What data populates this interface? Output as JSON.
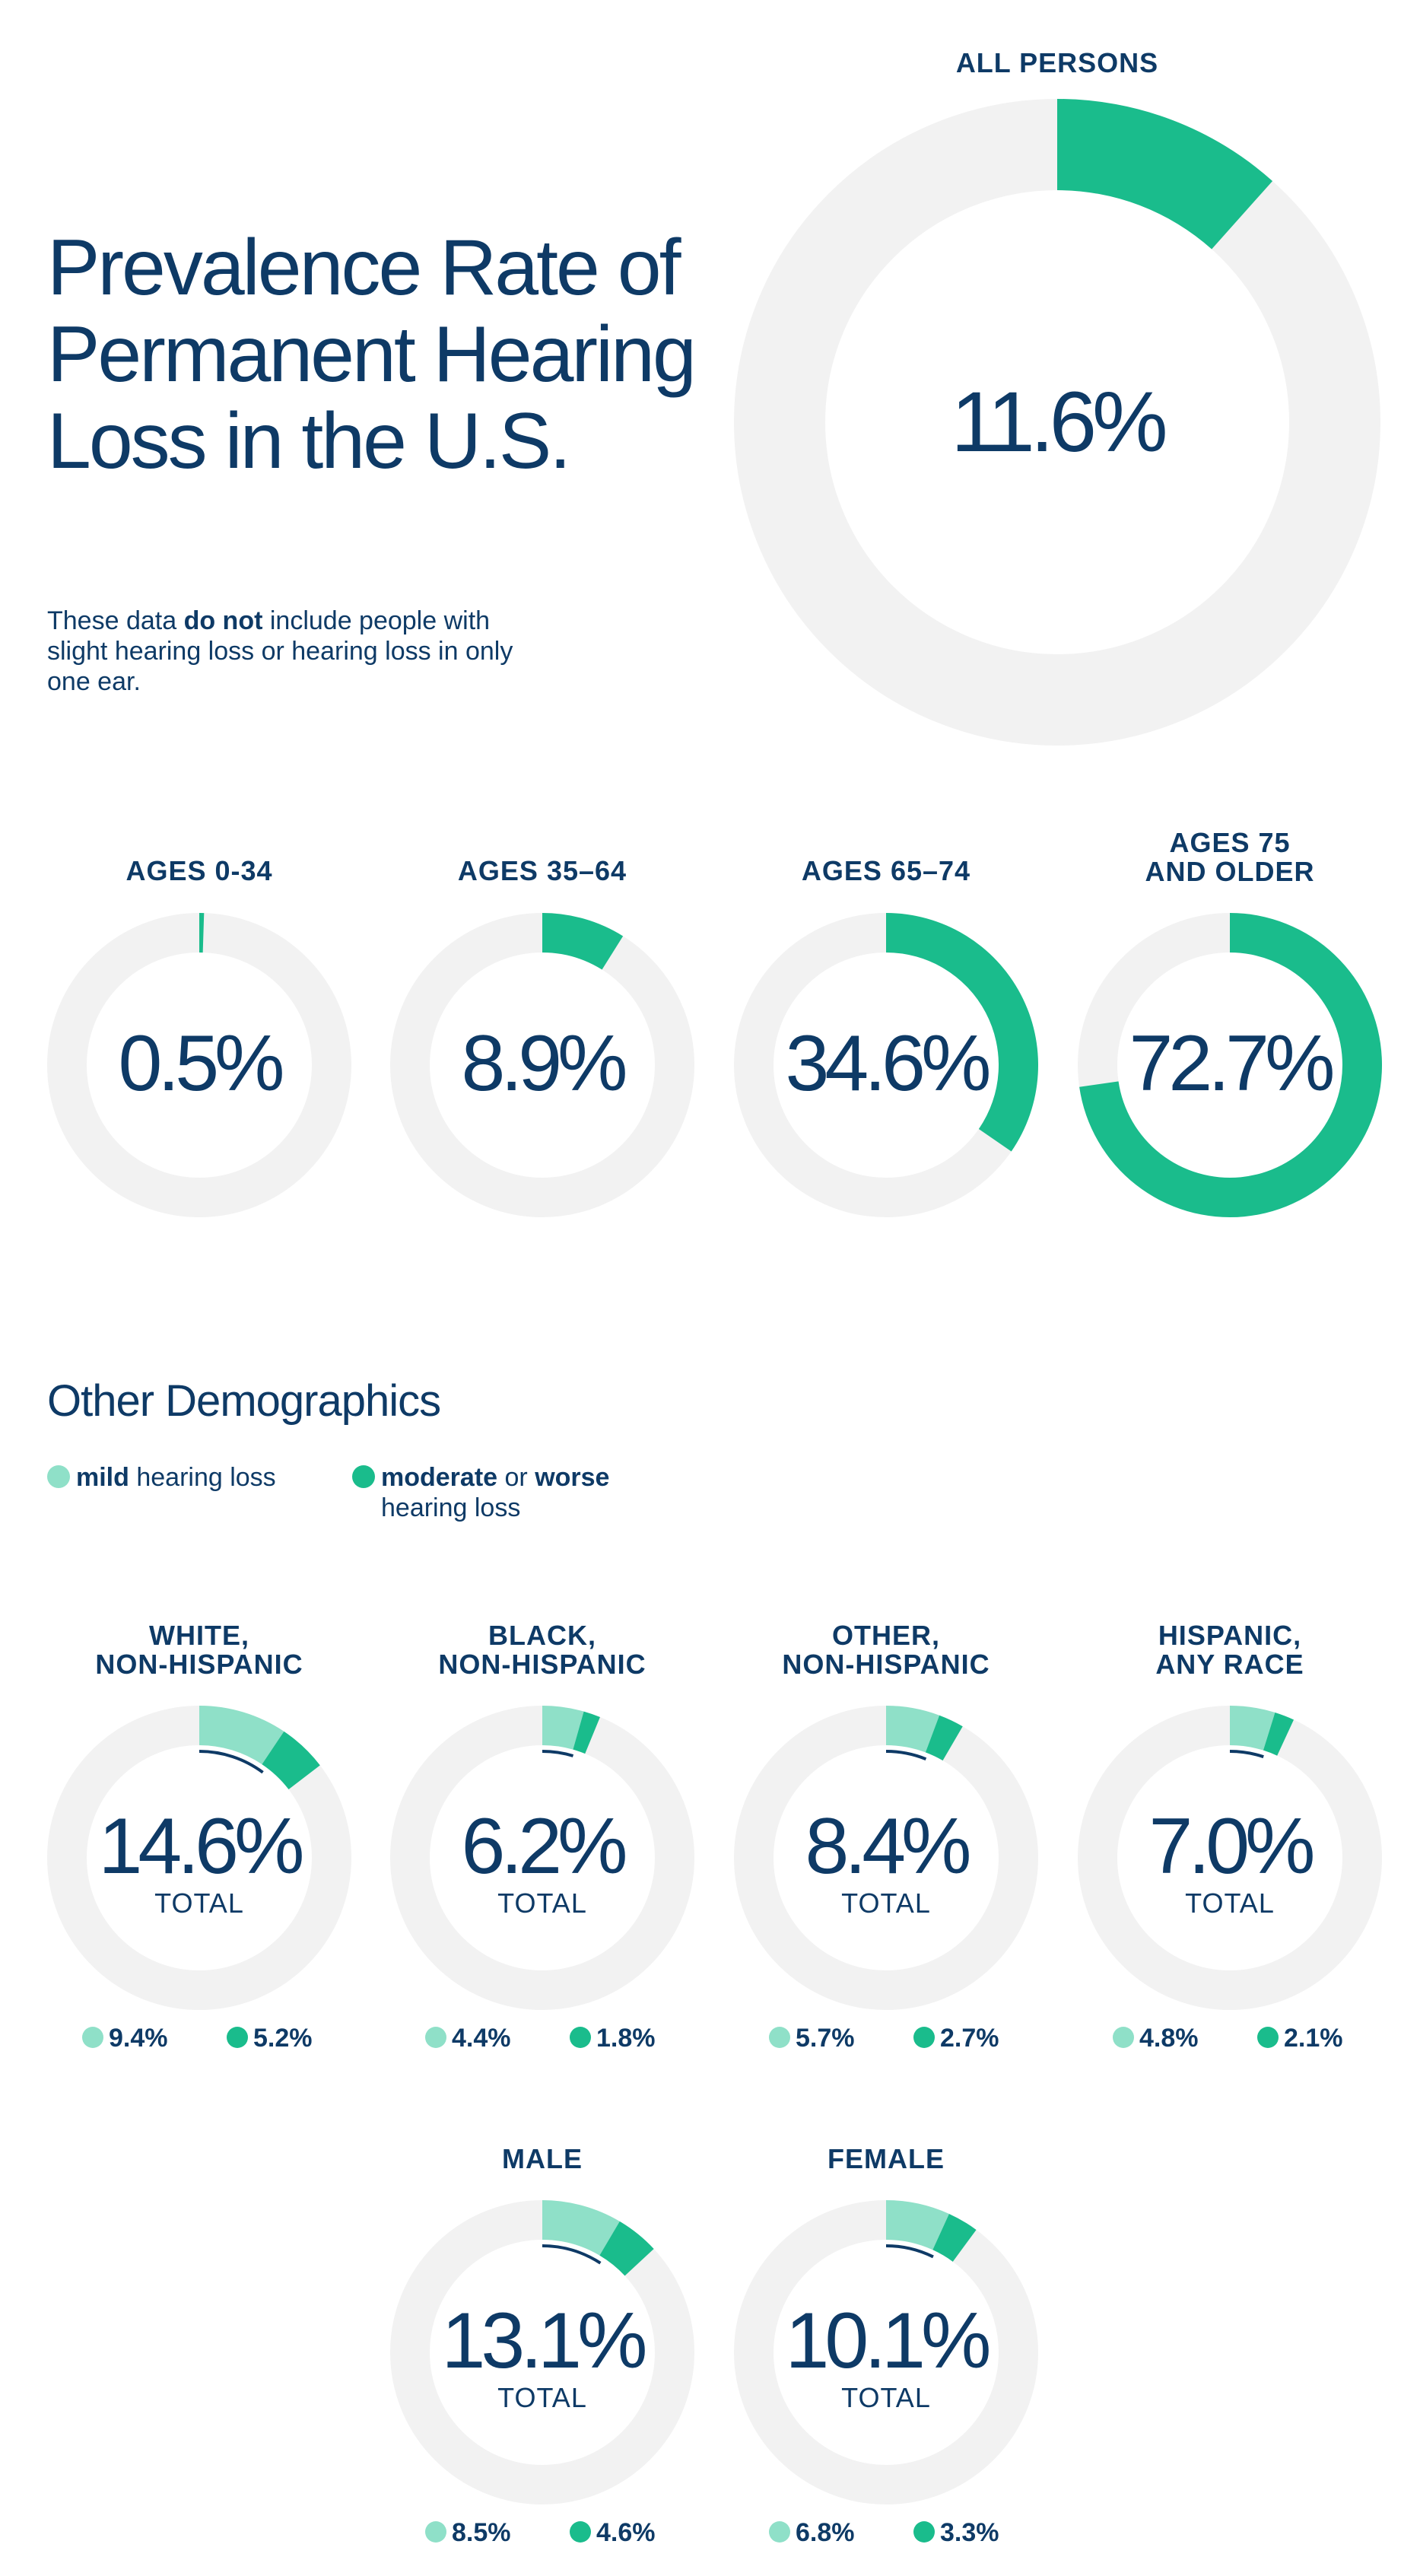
{
  "header": {
    "title": "Prevalence Rate of Permanent Hearing Loss in the U.S.",
    "note_pre": "These data ",
    "note_bold": "do not",
    "note_post": " include people with slight hearing loss or hearing loss in only one ear."
  },
  "colors": {
    "track": "#f2f2f2",
    "moderate": "#1abc8c",
    "mild": "#8fe0c8",
    "text": "#0e3a66"
  },
  "section": {
    "title": "Other Demographics",
    "legend_mild_bold": "mild",
    "legend_mild_rest": " hearing loss",
    "legend_mod_bold1": "moderate",
    "legend_mod_mid": " or ",
    "legend_mod_bold2": "worse",
    "legend_mod_rest": " hearing loss"
  },
  "chart_data": [
    {
      "type": "pie",
      "title": "ALL PERSONS",
      "values": [
        11.6
      ],
      "label": "11.6%"
    },
    {
      "type": "pie",
      "group": "age",
      "categories": [
        "AGES 0-34",
        "AGES 35–64",
        "AGES 65–74",
        "AGES 75 AND OLDER"
      ],
      "values": [
        0.5,
        8.9,
        34.6,
        72.7
      ],
      "labels": [
        "0.5%",
        "8.9%",
        "34.6%",
        "72.7%"
      ]
    },
    {
      "type": "pie",
      "group": "race-ethnicity",
      "categories": [
        "WHITE, NON-HISPANIC",
        "BLACK, NON-HISPANIC",
        "OTHER, NON-HISPANIC",
        "HISPANIC, ANY RACE"
      ],
      "series": [
        {
          "name": "mild hearing loss",
          "values": [
            9.4,
            4.4,
            5.7,
            4.8
          ]
        },
        {
          "name": "moderate or worse hearing loss",
          "values": [
            5.2,
            1.8,
            2.7,
            2.1
          ]
        }
      ],
      "totals": [
        14.6,
        6.2,
        8.4,
        7.0
      ],
      "total_labels": [
        "14.6%",
        "6.2%",
        "8.4%",
        "7.0%"
      ],
      "total_word": "TOTAL",
      "mild_labels": [
        "9.4%",
        "4.4%",
        "5.7%",
        "4.8%"
      ],
      "moderate_labels": [
        "5.2%",
        "1.8%",
        "2.7%",
        "2.1%"
      ]
    },
    {
      "type": "pie",
      "group": "sex",
      "categories": [
        "MALE",
        "FEMALE"
      ],
      "series": [
        {
          "name": "mild hearing loss",
          "values": [
            8.5,
            6.8
          ]
        },
        {
          "name": "moderate or worse hearing loss",
          "values": [
            4.6,
            3.3
          ]
        }
      ],
      "totals": [
        13.1,
        10.1
      ],
      "total_labels": [
        "13.1%",
        "10.1%"
      ],
      "total_word": "TOTAL",
      "mild_labels": [
        "8.5%",
        "6.8%"
      ],
      "moderate_labels": [
        "4.6%",
        "3.3%"
      ]
    }
  ]
}
